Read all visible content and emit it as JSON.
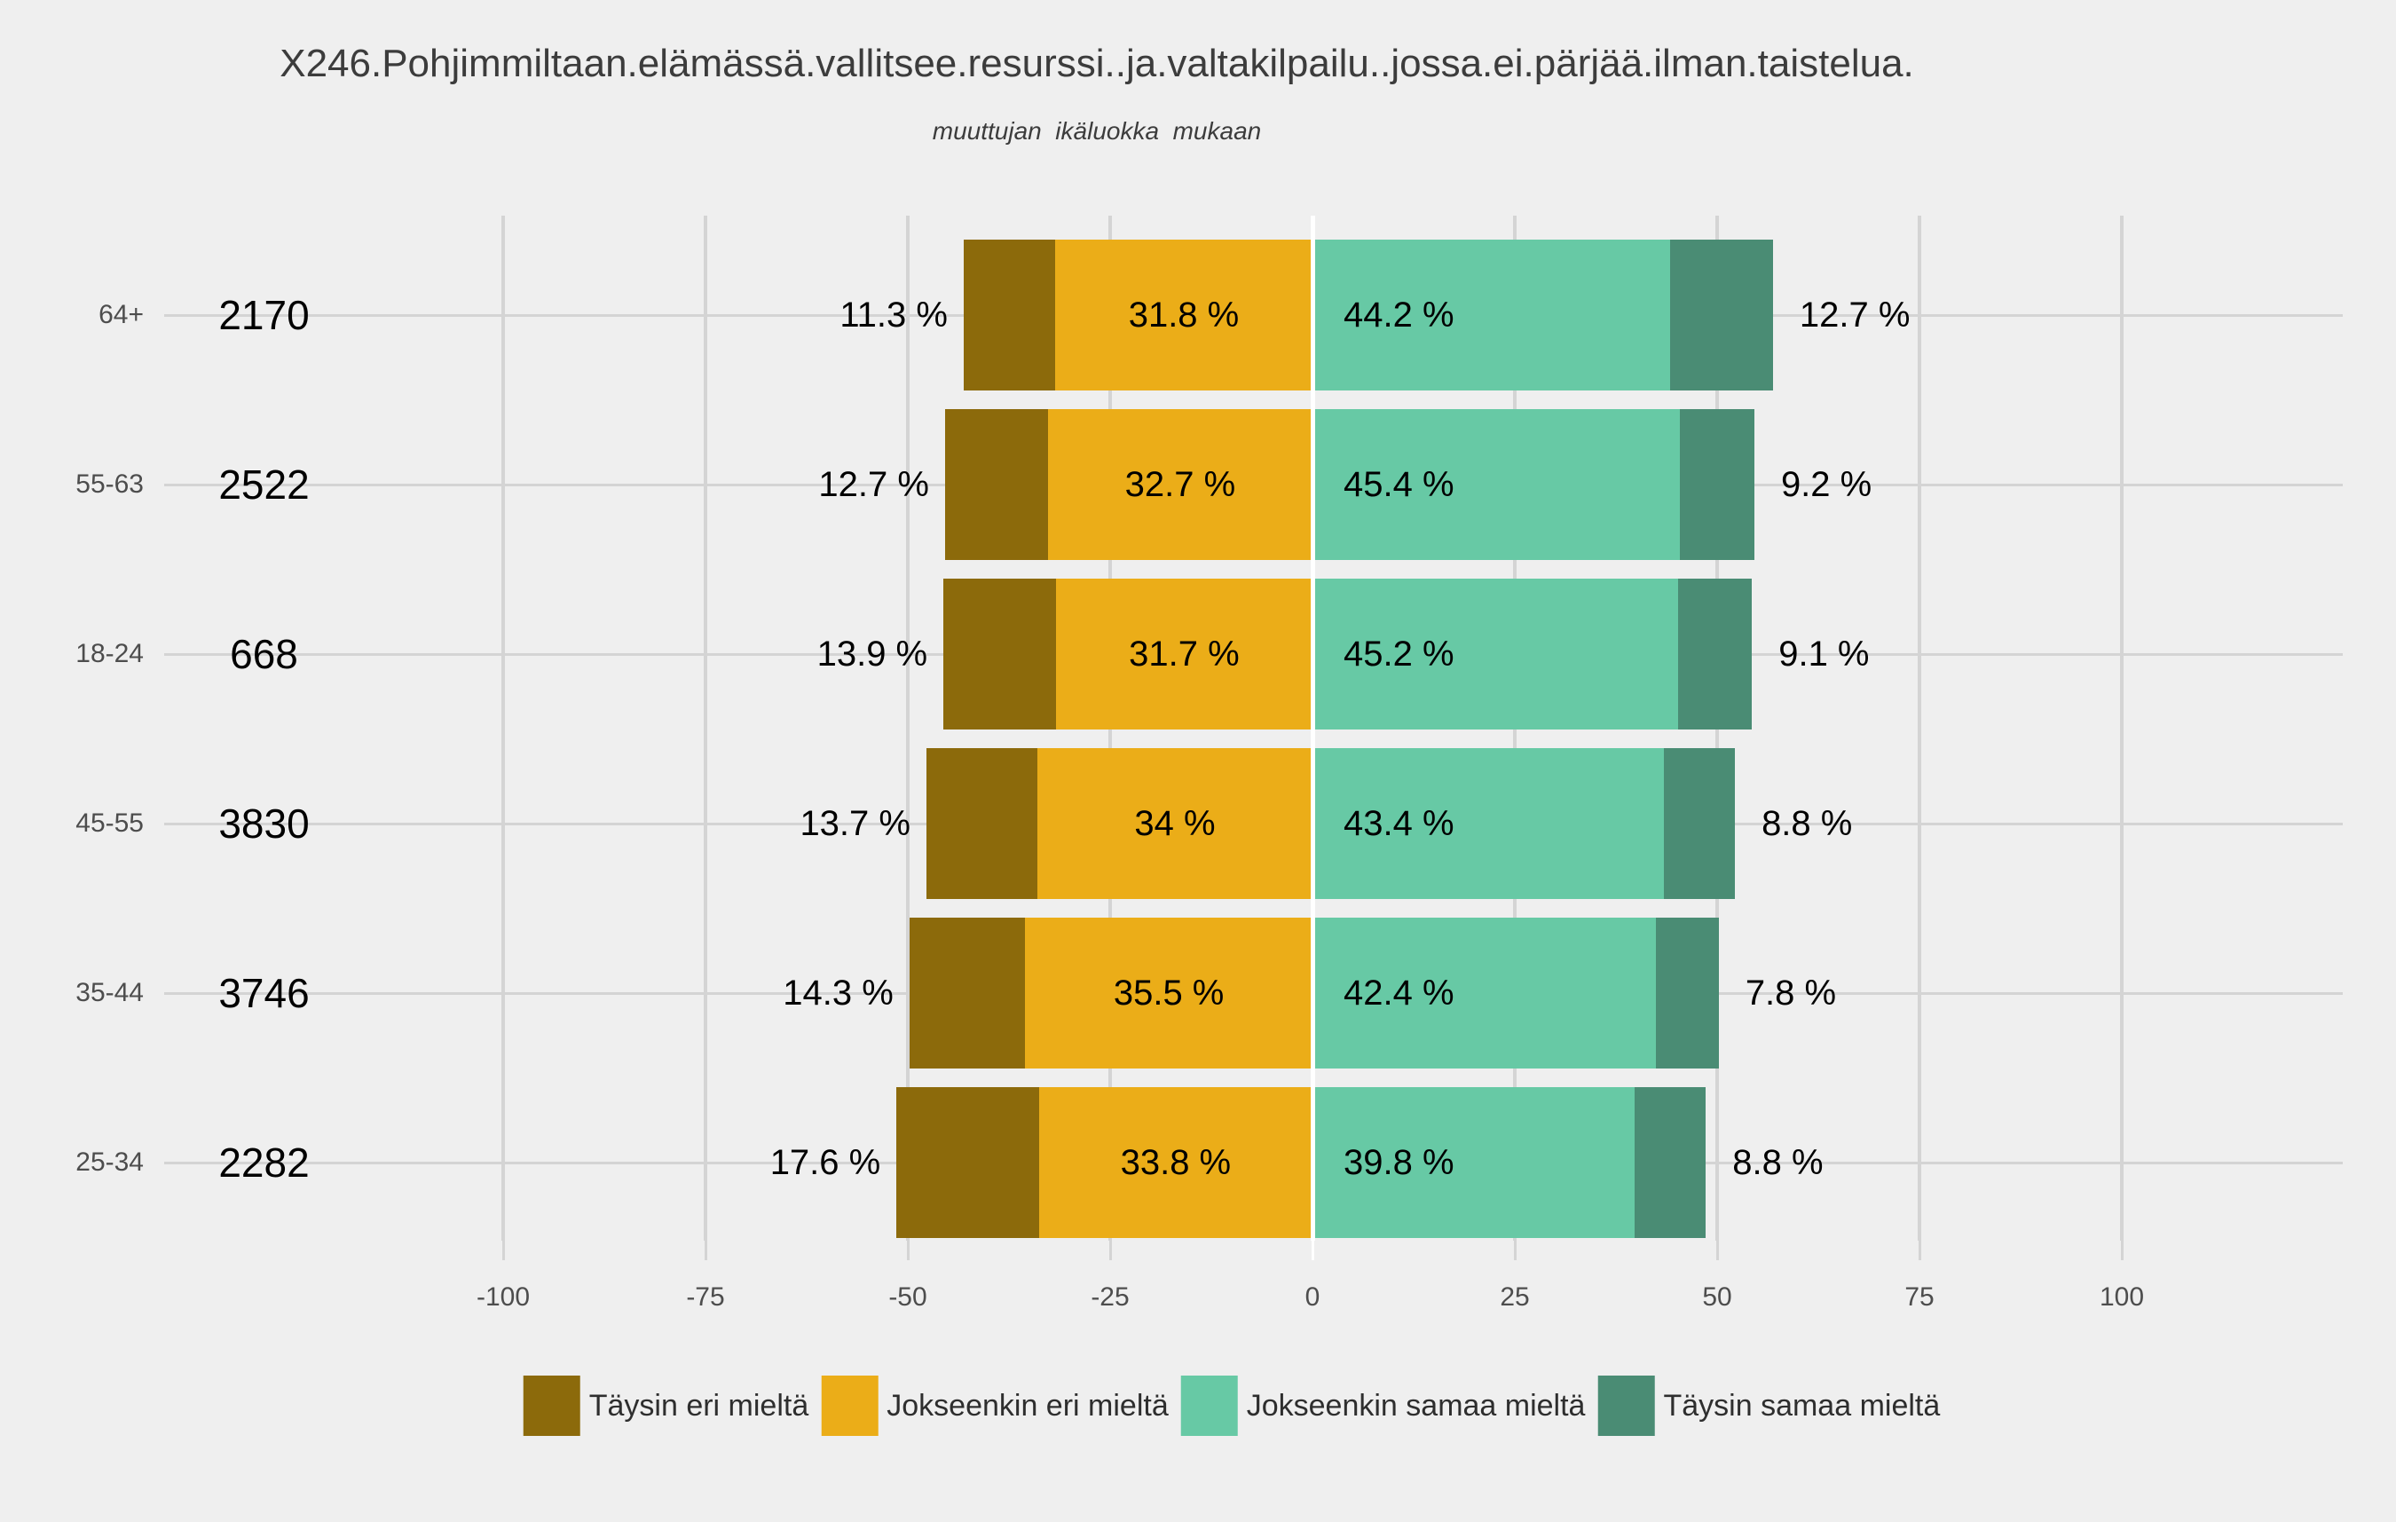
{
  "title": "X246.Pohjimmiltaan.elämässä.vallitsee.resurssi..ja.valtakilpailu..jossa.ei.pärjää.ilman.taistelua.",
  "subtitle": "muuttujan  ikäluokka  mukaan",
  "background_color": "#EFEFEF",
  "chart_data": {
    "type": "bar",
    "variant": "diverging-stacked-horizontal-likert",
    "categories": [
      "64+",
      "55-63",
      "18-24",
      "45-55",
      "35-44",
      "25-34"
    ],
    "counts": [
      2170,
      2522,
      668,
      3830,
      3746,
      2282
    ],
    "series": [
      {
        "name": "Täysin eri mieltä",
        "color": "#8C6A0B",
        "values": [
          11.3,
          12.7,
          13.9,
          13.7,
          14.3,
          17.6
        ],
        "labels": [
          "11.3 %",
          "12.7 %",
          "13.9 %",
          "13.7 %",
          "14.3 %",
          "17.6 %"
        ]
      },
      {
        "name": "Jokseenkin eri mieltä",
        "color": "#EBAD18",
        "values": [
          31.8,
          32.7,
          31.7,
          34,
          35.5,
          33.8
        ],
        "labels": [
          "31.8 %",
          "32.7 %",
          "31.7 %",
          "34 %",
          "35.5 %",
          "33.8 %"
        ]
      },
      {
        "name": "Jokseenkin samaa mieltä",
        "color": "#67C9A5",
        "values": [
          44.2,
          45.4,
          45.2,
          43.4,
          42.4,
          39.8
        ],
        "labels": [
          "44.2 %",
          "45.4 %",
          "45.2 %",
          "43.4 %",
          "42.4 %",
          "39.8 %"
        ]
      },
      {
        "name": "Täysin samaa mieltä",
        "color": "#4A8C74",
        "values": [
          12.7,
          9.2,
          9.1,
          8.8,
          7.8,
          8.8
        ],
        "labels": [
          "12.7 %",
          "9.2 %",
          "9.1 %",
          "8.8 %",
          "7.8 %",
          "8.8 %"
        ]
      }
    ],
    "x_ticks": [
      -100,
      -75,
      -50,
      -25,
      0,
      25,
      50,
      75,
      100
    ],
    "xlim": [
      -100,
      100
    ],
    "grid": true,
    "zero_reference_line": true,
    "legend_position": "bottom",
    "colors": {
      "gridline": "#D4D4D4",
      "zero_line": "#FFFFFF",
      "axis_text": "#4D4D4D",
      "value_text": "#000000",
      "title_text": "#3C3C3C"
    }
  }
}
